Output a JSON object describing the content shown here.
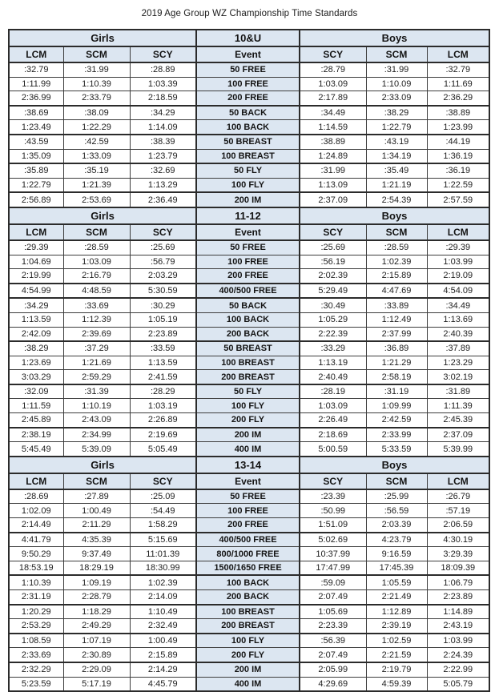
{
  "page_title": "2019 Age Group WZ Championship Time Standards",
  "colors": {
    "header_fill": "#dce6f1",
    "border_dark": "#2b2b2b",
    "text": "#1f1f1f"
  },
  "group_headers": {
    "girls": "Girls",
    "boys": "Boys"
  },
  "columns": {
    "girls": [
      "LCM",
      "SCM",
      "SCY"
    ],
    "event_label": "Event",
    "boys": [
      "SCY",
      "SCM",
      "LCM"
    ]
  },
  "sections": [
    {
      "age_group": "10&U",
      "groups": [
        [
          {
            "event": "50 FREE",
            "girls": [
              ":32.79",
              ":31.99",
              ":28.89"
            ],
            "boys": [
              ":28.79",
              ":31.99",
              ":32.79"
            ]
          },
          {
            "event": "100 FREE",
            "girls": [
              "1:11.99",
              "1:10.39",
              "1:03.39"
            ],
            "boys": [
              "1:03.09",
              "1:10.09",
              "1:11.69"
            ]
          },
          {
            "event": "200 FREE",
            "girls": [
              "2:36.99",
              "2:33.79",
              "2:18.59"
            ],
            "boys": [
              "2:17.89",
              "2:33.09",
              "2:36.29"
            ]
          }
        ],
        [
          {
            "event": "50 BACK",
            "girls": [
              ":38.69",
              ":38.09",
              ":34.29"
            ],
            "boys": [
              ":34.49",
              ":38.29",
              ":38.89"
            ]
          },
          {
            "event": "100 BACK",
            "girls": [
              "1:23.49",
              "1:22.29",
              "1:14.09"
            ],
            "boys": [
              "1:14.59",
              "1:22.79",
              "1:23.99"
            ]
          }
        ],
        [
          {
            "event": "50 BREAST",
            "girls": [
              ":43.59",
              ":42.59",
              ":38.39"
            ],
            "boys": [
              ":38.89",
              ":43.19",
              ":44.19"
            ]
          },
          {
            "event": "100 BREAST",
            "girls": [
              "1:35.09",
              "1:33.09",
              "1:23.79"
            ],
            "boys": [
              "1:24.89",
              "1:34.19",
              "1:36.19"
            ]
          }
        ],
        [
          {
            "event": "50 FLY",
            "girls": [
              ":35.89",
              ":35.19",
              ":32.69"
            ],
            "boys": [
              ":31.99",
              ":35.49",
              ":36.19"
            ]
          },
          {
            "event": "100 FLY",
            "girls": [
              "1:22.79",
              "1:21.39",
              "1:13.29"
            ],
            "boys": [
              "1:13.09",
              "1:21.19",
              "1:22.59"
            ]
          }
        ],
        [
          {
            "event": "200 IM",
            "girls": [
              "2:56.89",
              "2:53.69",
              "2:36.49"
            ],
            "boys": [
              "2:37.09",
              "2:54.39",
              "2:57.59"
            ]
          }
        ]
      ]
    },
    {
      "age_group": "11-12",
      "groups": [
        [
          {
            "event": "50 FREE",
            "girls": [
              ":29.39",
              ":28.59",
              ":25.69"
            ],
            "boys": [
              ":25.69",
              ":28.59",
              ":29.39"
            ]
          },
          {
            "event": "100 FREE",
            "girls": [
              "1:04.69",
              "1:03.09",
              ":56.79"
            ],
            "boys": [
              ":56.19",
              "1:02.39",
              "1:03.99"
            ]
          },
          {
            "event": "200 FREE",
            "girls": [
              "2:19.99",
              "2:16.79",
              "2:03.29"
            ],
            "boys": [
              "2:02.39",
              "2:15.89",
              "2:19.09"
            ]
          }
        ],
        [
          {
            "event": "400/500 FREE",
            "girls": [
              "4:54.99",
              "4:48.59",
              "5:30.59"
            ],
            "boys": [
              "5:29.49",
              "4:47.69",
              "4:54.09"
            ]
          }
        ],
        [
          {
            "event": "50 BACK",
            "girls": [
              ":34.29",
              ":33.69",
              ":30.29"
            ],
            "boys": [
              ":30.49",
              ":33.89",
              ":34.49"
            ]
          },
          {
            "event": "100 BACK",
            "girls": [
              "1:13.59",
              "1:12.39",
              "1:05.19"
            ],
            "boys": [
              "1:05.29",
              "1:12.49",
              "1:13.69"
            ]
          },
          {
            "event": "200 BACK",
            "girls": [
              "2:42.09",
              "2:39.69",
              "2:23.89"
            ],
            "boys": [
              "2:22.39",
              "2:37.99",
              "2:40.39"
            ]
          }
        ],
        [
          {
            "event": "50 BREAST",
            "girls": [
              ":38.29",
              ":37.29",
              ":33.59"
            ],
            "boys": [
              ":33.29",
              ":36.89",
              ":37.89"
            ]
          },
          {
            "event": "100 BREAST",
            "girls": [
              "1:23.69",
              "1:21.69",
              "1:13.59"
            ],
            "boys": [
              "1:13.19",
              "1:21.29",
              "1:23.29"
            ]
          },
          {
            "event": "200 BREAST",
            "girls": [
              "3:03.29",
              "2:59.29",
              "2:41.59"
            ],
            "boys": [
              "2:40.49",
              "2:58.19",
              "3:02.19"
            ]
          }
        ],
        [
          {
            "event": "50 FLY",
            "girls": [
              ":32.09",
              ":31.39",
              ":28.29"
            ],
            "boys": [
              ":28.19",
              ":31.19",
              ":31.89"
            ]
          },
          {
            "event": "100 FLY",
            "girls": [
              "1:11.59",
              "1:10.19",
              "1:03.19"
            ],
            "boys": [
              "1:03.09",
              "1:09.99",
              "1:11.39"
            ]
          },
          {
            "event": "200 FLY",
            "girls": [
              "2:45.89",
              "2:43.09",
              "2:26.89"
            ],
            "boys": [
              "2:26.49",
              "2:42.59",
              "2:45.39"
            ]
          }
        ],
        [
          {
            "event": "200 IM",
            "girls": [
              "2:38.19",
              "2:34.99",
              "2:19.69"
            ],
            "boys": [
              "2:18.69",
              "2:33.99",
              "2:37.09"
            ]
          },
          {
            "event": "400 IM",
            "girls": [
              "5:45.49",
              "5:39.09",
              "5:05.49"
            ],
            "boys": [
              "5:00.59",
              "5:33.59",
              "5:39.99"
            ]
          }
        ]
      ]
    },
    {
      "age_group": "13-14",
      "groups": [
        [
          {
            "event": "50 FREE",
            "girls": [
              ":28.69",
              ":27.89",
              ":25.09"
            ],
            "boys": [
              ":23.39",
              ":25.99",
              ":26.79"
            ]
          },
          {
            "event": "100 FREE",
            "girls": [
              "1:02.09",
              "1:00.49",
              ":54.49"
            ],
            "boys": [
              ":50.99",
              ":56.59",
              ":57.19"
            ]
          },
          {
            "event": "200 FREE",
            "girls": [
              "2:14.49",
              "2:11.29",
              "1:58.29"
            ],
            "boys": [
              "1:51.09",
              "2:03.39",
              "2:06.59"
            ]
          }
        ],
        [
          {
            "event": "400/500 FREE",
            "girls": [
              "4:41.79",
              "4:35.39",
              "5:15.69"
            ],
            "boys": [
              "5:02.69",
              "4:23.79",
              "4:30.19"
            ]
          },
          {
            "event": "800/1000 FREE",
            "girls": [
              "9:50.29",
              "9:37.49",
              "11:01.39"
            ],
            "boys": [
              "10:37.99",
              "9:16.59",
              "3:29.39"
            ]
          },
          {
            "event": "1500/1650 FREE",
            "girls": [
              "18:53.19",
              "18:29.19",
              "18:30.99"
            ],
            "boys": [
              "17:47.99",
              "17:45.39",
              "18:09.39"
            ]
          }
        ],
        [
          {
            "event": "100 BACK",
            "girls": [
              "1:10.39",
              "1:09.19",
              "1:02.39"
            ],
            "boys": [
              ":59.09",
              "1:05.59",
              "1:06.79"
            ]
          },
          {
            "event": "200 BACK",
            "girls": [
              "2:31.19",
              "2:28.79",
              "2:14.09"
            ],
            "boys": [
              "2:07.49",
              "2:21.49",
              "2:23.89"
            ]
          }
        ],
        [
          {
            "event": "100 BREAST",
            "girls": [
              "1:20.29",
              "1:18.29",
              "1:10.49"
            ],
            "boys": [
              "1:05.69",
              "1:12.89",
              "1:14.89"
            ]
          },
          {
            "event": "200 BREAST",
            "girls": [
              "2:53.29",
              "2:49.29",
              "2:32.49"
            ],
            "boys": [
              "2:23.39",
              "2:39.19",
              "2:43.19"
            ]
          }
        ],
        [
          {
            "event": "100 FLY",
            "girls": [
              "1:08.59",
              "1:07.19",
              "1:00.49"
            ],
            "boys": [
              ":56.39",
              "1:02.59",
              "1:03.99"
            ]
          },
          {
            "event": "200 FLY",
            "girls": [
              "2:33.69",
              "2:30.89",
              "2:15.89"
            ],
            "boys": [
              "2:07.49",
              "2:21.59",
              "2:24.39"
            ]
          }
        ],
        [
          {
            "event": "200 IM",
            "girls": [
              "2:32.29",
              "2:29.09",
              "2:14.29"
            ],
            "boys": [
              "2:05.99",
              "2:19.79",
              "2:22.99"
            ]
          },
          {
            "event": "400 IM",
            "girls": [
              "5:23.59",
              "5:17.19",
              "4:45.79"
            ],
            "boys": [
              "4:29.69",
              "4:59.39",
              "5:05.79"
            ]
          }
        ]
      ]
    }
  ]
}
